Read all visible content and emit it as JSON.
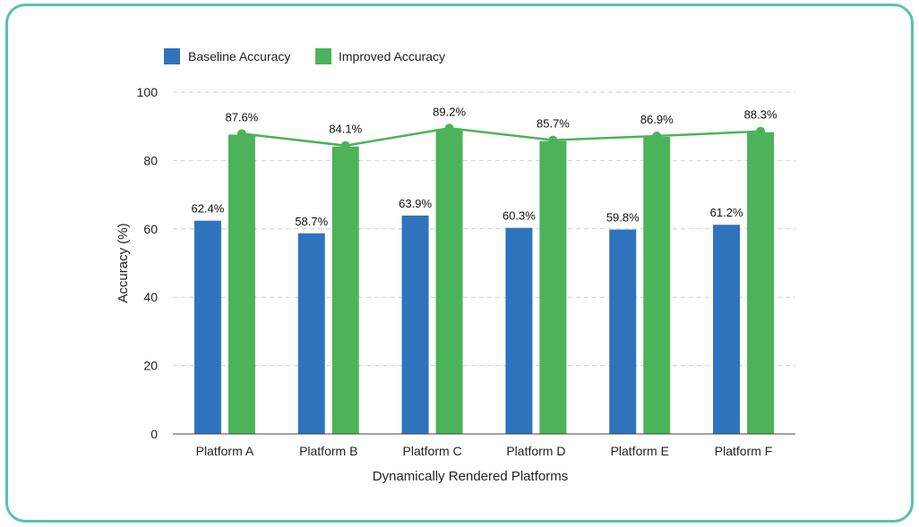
{
  "chart_data": {
    "type": "bar",
    "xlabel": "Dynamically Rendered Platforms",
    "ylabel": "Accuracy (%)",
    "ylim": [
      0,
      100
    ],
    "yticks": [
      0,
      20,
      40,
      60,
      80,
      100
    ],
    "grid": true,
    "legend_position": "top-left",
    "categories": [
      "Platform A",
      "Platform B",
      "Platform C",
      "Platform D",
      "Platform E",
      "Platform F"
    ],
    "series": [
      {
        "name": "Baseline Accuracy",
        "color": "#2f73bd",
        "values": [
          62.4,
          58.7,
          63.9,
          60.3,
          59.8,
          61.2
        ],
        "labels": [
          "62.4%",
          "58.7%",
          "63.9%",
          "60.3%",
          "59.8%",
          "61.2%"
        ]
      },
      {
        "name": "Improved Accuracy",
        "color": "#4cb35a",
        "values": [
          87.6,
          84.1,
          89.2,
          85.7,
          86.9,
          88.3
        ],
        "labels": [
          "87.6%",
          "84.1%",
          "89.2%",
          "85.7%",
          "86.9%",
          "88.3%"
        ],
        "trend_line": true
      }
    ]
  }
}
